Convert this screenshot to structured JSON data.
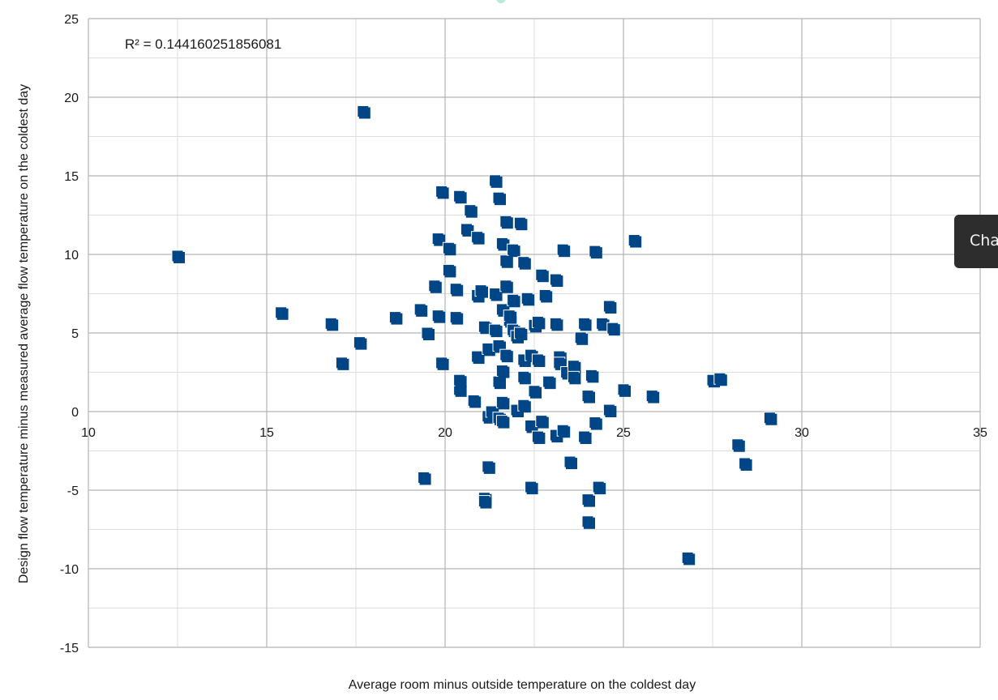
{
  "colors": {
    "marker": "#004586",
    "grid_major": "#b3b3b3",
    "grid_minor": "#dddddd",
    "tooltip_bg": "#2d2d2d"
  },
  "tooltip": {
    "text": "Cha"
  },
  "chart_data": {
    "type": "scatter",
    "xlabel": "Average room minus outside temperature on the coldest day",
    "ylabel": "Design flow temperature minus measured average flow temperature on the coldest day",
    "annotation": "R² = 0.144160251856081",
    "xlim": [
      10,
      35
    ],
    "ylim": [
      -15,
      25
    ],
    "x_ticks": [
      10,
      15,
      20,
      25,
      30,
      35
    ],
    "y_ticks": [
      25,
      20,
      15,
      10,
      5,
      0,
      -5,
      -10,
      -15
    ],
    "grid": true,
    "legend": "none",
    "points": [
      [
        12.5,
        9.9
      ],
      [
        15.4,
        6.3
      ],
      [
        16.8,
        5.6
      ],
      [
        17.1,
        3.1
      ],
      [
        17.6,
        4.4
      ],
      [
        17.7,
        19.1
      ],
      [
        18.6,
        6.0
      ],
      [
        19.3,
        6.5
      ],
      [
        19.4,
        -4.2
      ],
      [
        19.5,
        5.0
      ],
      [
        19.7,
        8.0
      ],
      [
        19.8,
        6.1
      ],
      [
        19.8,
        11.0
      ],
      [
        19.9,
        3.1
      ],
      [
        19.9,
        14.0
      ],
      [
        20.1,
        10.4
      ],
      [
        20.1,
        9.0
      ],
      [
        20.3,
        6.0
      ],
      [
        20.3,
        7.8
      ],
      [
        20.4,
        1.4
      ],
      [
        20.4,
        2.0
      ],
      [
        20.4,
        13.7
      ],
      [
        20.6,
        11.6
      ],
      [
        20.7,
        12.8
      ],
      [
        20.8,
        0.7
      ],
      [
        20.9,
        11.1
      ],
      [
        20.9,
        7.4
      ],
      [
        20.9,
        3.5
      ],
      [
        21.0,
        7.7
      ],
      [
        21.1,
        5.4
      ],
      [
        21.1,
        -5.5
      ],
      [
        21.1,
        -5.7
      ],
      [
        21.2,
        -0.3
      ],
      [
        21.2,
        -3.5
      ],
      [
        21.2,
        4.0
      ],
      [
        21.3,
        0.0
      ],
      [
        21.4,
        5.2
      ],
      [
        21.4,
        14.7
      ],
      [
        21.4,
        7.5
      ],
      [
        21.5,
        -0.4
      ],
      [
        21.5,
        1.9
      ],
      [
        21.5,
        4.2
      ],
      [
        21.5,
        13.6
      ],
      [
        21.6,
        0.6
      ],
      [
        21.6,
        -0.6
      ],
      [
        21.6,
        2.6
      ],
      [
        21.6,
        6.5
      ],
      [
        21.6,
        10.7
      ],
      [
        21.7,
        12.1
      ],
      [
        21.7,
        8.0
      ],
      [
        21.7,
        3.6
      ],
      [
        21.7,
        9.6
      ],
      [
        21.8,
        5.8
      ],
      [
        21.8,
        6.1
      ],
      [
        21.9,
        7.1
      ],
      [
        21.9,
        10.3
      ],
      [
        21.9,
        5.2
      ],
      [
        22.0,
        4.8
      ],
      [
        22.0,
        0.1
      ],
      [
        22.1,
        5.0
      ],
      [
        22.1,
        12.0
      ],
      [
        22.2,
        0.4
      ],
      [
        22.2,
        9.5
      ],
      [
        22.2,
        3.3
      ],
      [
        22.2,
        2.2
      ],
      [
        22.3,
        7.2
      ],
      [
        22.4,
        3.6
      ],
      [
        22.4,
        -0.9
      ],
      [
        22.4,
        -4.8
      ],
      [
        22.5,
        5.5
      ],
      [
        22.5,
        1.3
      ],
      [
        22.6,
        3.3
      ],
      [
        22.6,
        -1.6
      ],
      [
        22.6,
        5.7
      ],
      [
        22.7,
        8.7
      ],
      [
        22.7,
        -0.6
      ],
      [
        22.8,
        7.4
      ],
      [
        22.9,
        1.9
      ],
      [
        23.1,
        5.6
      ],
      [
        23.1,
        8.4
      ],
      [
        23.1,
        -1.5
      ],
      [
        23.2,
        3.5
      ],
      [
        23.2,
        3.1
      ],
      [
        23.3,
        10.3
      ],
      [
        23.3,
        -1.2
      ],
      [
        23.4,
        2.5
      ],
      [
        23.5,
        -3.2
      ],
      [
        23.6,
        2.9
      ],
      [
        23.6,
        2.2
      ],
      [
        23.8,
        4.7
      ],
      [
        23.9,
        -1.6
      ],
      [
        23.9,
        5.6
      ],
      [
        24.0,
        -5.6
      ],
      [
        24.0,
        -7.0
      ],
      [
        24.0,
        1.0
      ],
      [
        24.1,
        2.3
      ],
      [
        24.2,
        -0.7
      ],
      [
        24.2,
        10.2
      ],
      [
        24.3,
        -4.8
      ],
      [
        24.4,
        5.6
      ],
      [
        24.6,
        6.7
      ],
      [
        24.6,
        0.1
      ],
      [
        24.7,
        5.3
      ],
      [
        25.0,
        1.4
      ],
      [
        25.3,
        10.9
      ],
      [
        25.8,
        1.0
      ],
      [
        26.8,
        -9.3
      ],
      [
        27.5,
        2.0
      ],
      [
        27.7,
        2.1
      ],
      [
        28.2,
        -2.1
      ],
      [
        28.4,
        -3.3
      ],
      [
        29.1,
        -0.4
      ]
    ]
  }
}
